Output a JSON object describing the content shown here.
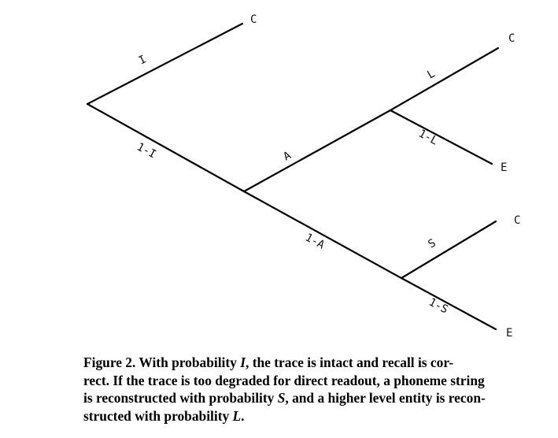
{
  "diagram": {
    "branch_labels": {
      "root_to_c": "I",
      "root_to_node_a": "1-I",
      "node_a_up": "A",
      "node_a_down": "1-A",
      "upper_to_c": "L",
      "upper_to_e": "1-L",
      "lower_to_c": "S",
      "lower_to_e": "1-S"
    },
    "leaf_labels": {
      "top_c": "C",
      "upper_c": "C",
      "upper_e": "E",
      "lower_c": "C",
      "lower_e": "E"
    }
  },
  "caption": {
    "line1_a": "Figure 2. With probability ",
    "line1_var": "I",
    "line1_b": ", the trace is intact and recall is cor-",
    "line2": "rect. If the trace is too degraded for direct readout, a phoneme string",
    "line3_a": "is reconstructed with probability ",
    "line3_var": "S",
    "line3_b": ", and a higher level entity is recon-",
    "line4_a": "structed with probability ",
    "line4_var": "L",
    "line4_b": "."
  }
}
